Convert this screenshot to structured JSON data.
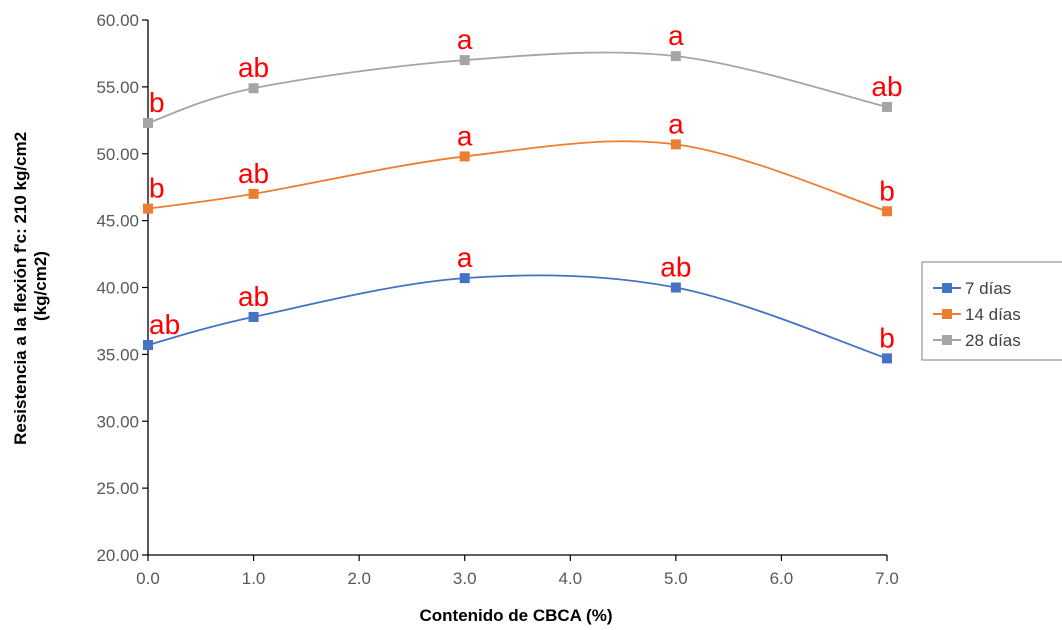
{
  "chart_data": {
    "type": "line",
    "title": "",
    "xlabel": "Contenido de CBCA (%)",
    "ylabel": "Resistencia a la flexión f'c: 210 kg/cm2 (kg/cm2)",
    "ylabel_lines": [
      "Resistencia a la flexión f'c: 210 kg/cm2",
      "(kg/cm2)"
    ],
    "x": [
      0,
      1,
      3,
      5,
      7
    ],
    "xlim": [
      0,
      7
    ],
    "ylim": [
      20,
      60
    ],
    "xticks": [
      "0.0",
      "1.0",
      "2.0",
      "3.0",
      "4.0",
      "5.0",
      "6.0",
      "7.0"
    ],
    "yticks": [
      "20.00",
      "25.00",
      "30.00",
      "35.00",
      "40.00",
      "45.00",
      "50.00",
      "55.00",
      "60.00"
    ],
    "grid": false,
    "smooth": true,
    "legend_position": "right",
    "label_color": "#ff0000",
    "series": [
      {
        "name": "7 días",
        "color": "#4472c4",
        "values": [
          35.7,
          37.8,
          40.7,
          40.0,
          34.7
        ],
        "labels": [
          "ab",
          "ab",
          "a",
          "ab",
          "b"
        ]
      },
      {
        "name": "14 días",
        "color": "#ed7d31",
        "values": [
          45.9,
          47.0,
          49.8,
          50.7,
          45.7
        ],
        "labels": [
          "b",
          "ab",
          "a",
          "a",
          "b"
        ]
      },
      {
        "name": "28 días",
        "color": "#a5a5a5",
        "values": [
          52.3,
          54.9,
          57.0,
          57.3,
          53.5
        ],
        "labels": [
          "b",
          "ab",
          "a",
          "a",
          "ab"
        ]
      }
    ]
  }
}
